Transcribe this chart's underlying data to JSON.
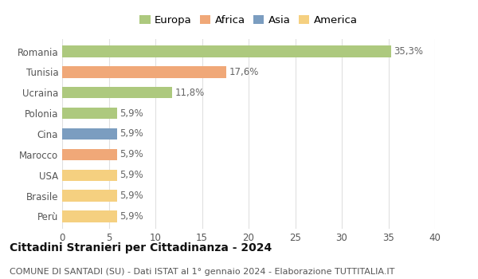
{
  "categories": [
    "Romania",
    "Tunisia",
    "Ucraina",
    "Polonia",
    "Cina",
    "Marocco",
    "USA",
    "Brasile",
    "Perù"
  ],
  "values": [
    35.3,
    17.6,
    11.8,
    5.9,
    5.9,
    5.9,
    5.9,
    5.9,
    5.9
  ],
  "labels": [
    "35,3%",
    "17,6%",
    "11,8%",
    "5,9%",
    "5,9%",
    "5,9%",
    "5,9%",
    "5,9%",
    "5,9%"
  ],
  "bar_colors": [
    "#adc97e",
    "#f0a878",
    "#adc97e",
    "#adc97e",
    "#7b9dc0",
    "#f0a878",
    "#f5d080",
    "#f5d080",
    "#f5d080"
  ],
  "legend_labels": [
    "Europa",
    "Africa",
    "Asia",
    "America"
  ],
  "legend_colors": [
    "#adc97e",
    "#f0a878",
    "#7b9dc0",
    "#f5d080"
  ],
  "title": "Cittadini Stranieri per Cittadinanza - 2024",
  "subtitle": "COMUNE DI SANTADI (SU) - Dati ISTAT al 1° gennaio 2024 - Elaborazione TUTTITALIA.IT",
  "xlim": [
    0,
    40
  ],
  "xticks": [
    0,
    5,
    10,
    15,
    20,
    25,
    30,
    35,
    40
  ],
  "background_color": "#ffffff",
  "grid_color": "#e0e0e0",
  "bar_height": 0.55,
  "title_fontsize": 10,
  "subtitle_fontsize": 8,
  "label_fontsize": 8.5,
  "tick_fontsize": 8.5,
  "legend_fontsize": 9.5
}
